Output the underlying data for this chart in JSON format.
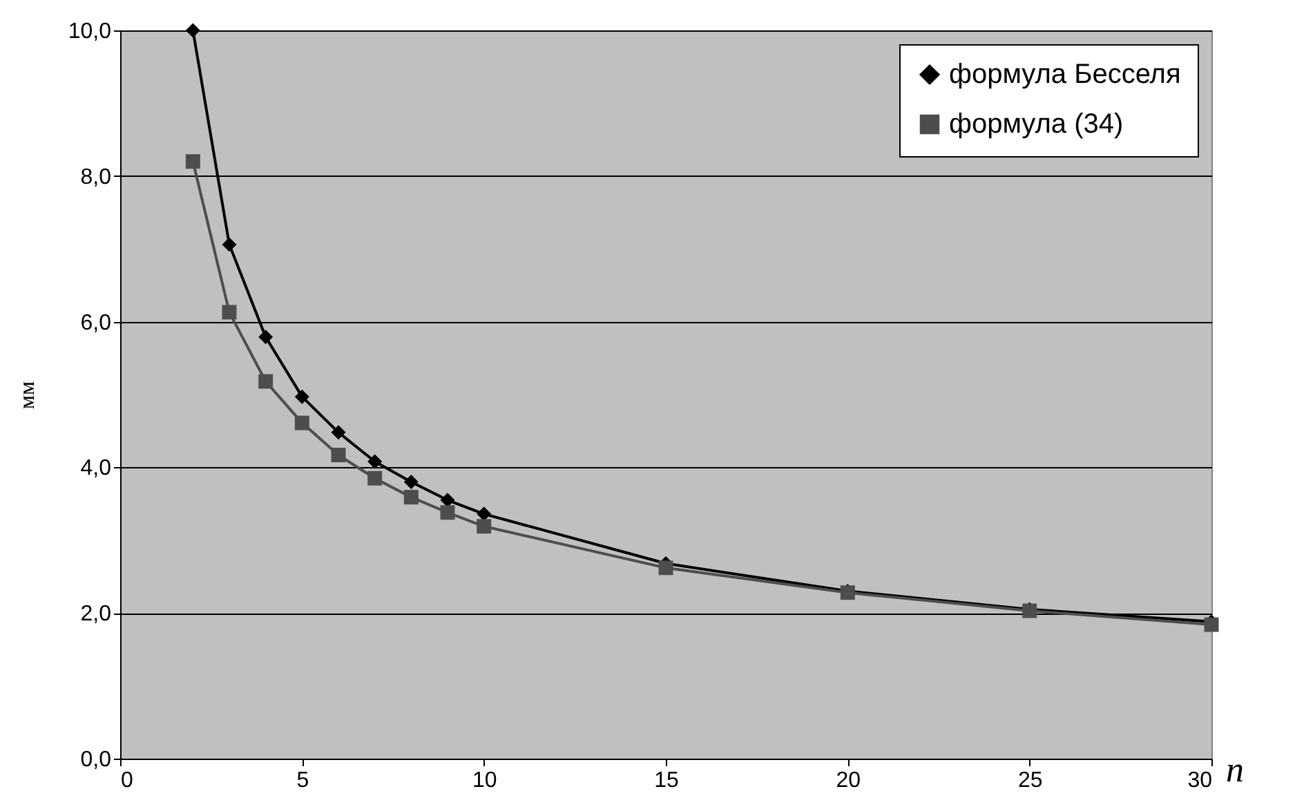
{
  "chart_data": {
    "type": "line",
    "xlabel": "n",
    "ylabel": "мм",
    "x": [
      2,
      3,
      4,
      5,
      6,
      7,
      8,
      9,
      10,
      15,
      20,
      25,
      30
    ],
    "series": [
      {
        "name": "формула Бесселя",
        "color": "#000000",
        "marker": "diamond",
        "values": [
          10.0,
          7.06,
          5.79,
          4.97,
          4.48,
          4.08,
          3.8,
          3.55,
          3.36,
          2.68,
          2.3,
          2.05,
          1.88
        ]
      },
      {
        "name": "формула (34)",
        "color": "#4d4d4d",
        "marker": "square",
        "values": [
          8.2,
          6.13,
          5.18,
          4.61,
          4.17,
          3.85,
          3.59,
          3.38,
          3.19,
          2.62,
          2.28,
          2.03,
          1.84
        ]
      }
    ],
    "xlim": [
      0,
      30
    ],
    "xticks": [
      0,
      5,
      10,
      15,
      20,
      25,
      30
    ],
    "ylim": [
      0,
      10
    ],
    "yticks": [
      {
        "value": 0,
        "label": "0,0"
      },
      {
        "value": 2,
        "label": "2,0"
      },
      {
        "value": 4,
        "label": "4,0"
      },
      {
        "value": 6,
        "label": "6,0"
      },
      {
        "value": 8,
        "label": "8,0"
      },
      {
        "value": 10,
        "label": "10,0"
      }
    ],
    "grid": "y",
    "legend": "top right"
  }
}
